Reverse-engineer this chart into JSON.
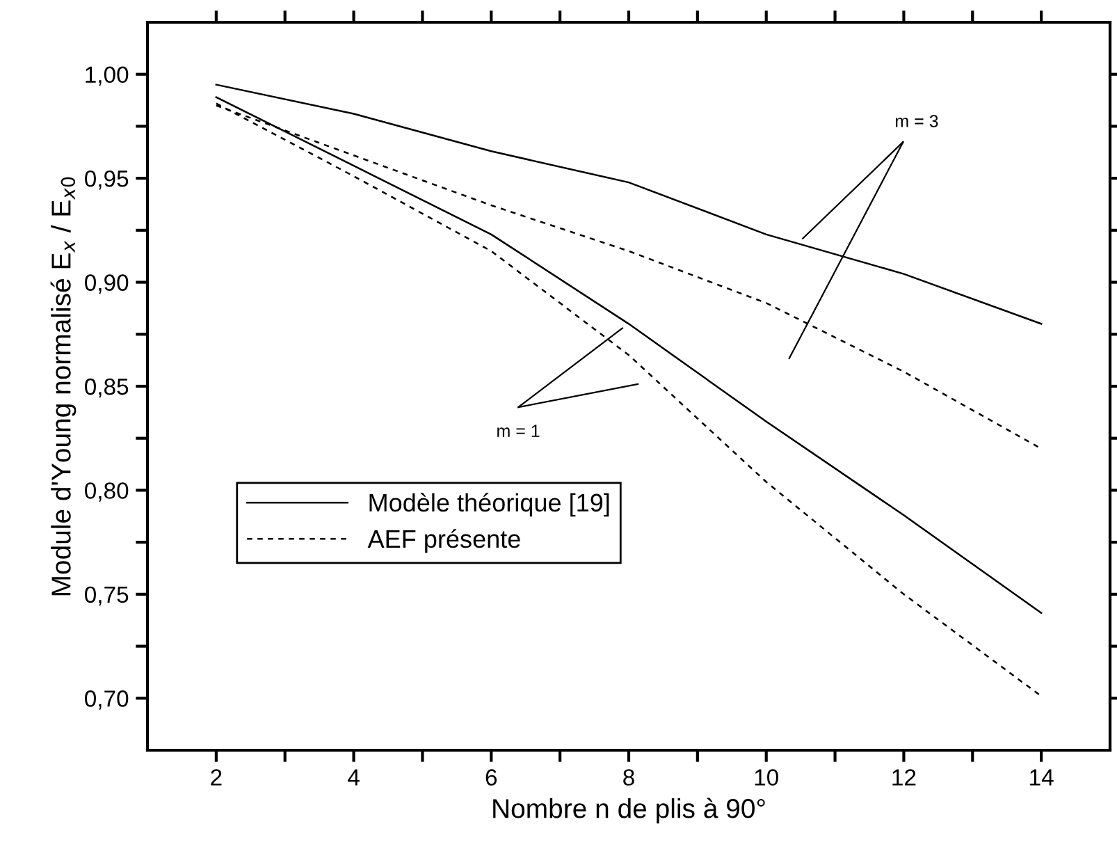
{
  "chart_data": {
    "type": "line",
    "xlabel": "Nombre n de plis à 90°",
    "ylabel": "Module d'Young normalisé E$_{x}$ / E$_{x0}$",
    "x": [
      2,
      4,
      6,
      8,
      10,
      12,
      14
    ],
    "series": [
      {
        "name": "Modèle théorique [19]",
        "color": "#000000",
        "line_style": "solid",
        "values": [
          0.995,
          0.981,
          0.963,
          0.948,
          0.923,
          0.904,
          0.88
        ]
      },
      {
        "color": "#000000",
        "line_style": "solid",
        "values": [
          0.989,
          0.956,
          0.923,
          0.88,
          0.833,
          0.788,
          0.741
        ]
      },
      {
        "name": "AEF présente",
        "color": "#000000",
        "line_style": "dashed",
        "values": [
          0.985,
          0.961,
          0.937,
          0.915,
          0.89,
          0.857,
          0.82
        ]
      },
      {
        "color": "#000000",
        "line_style": "dashed",
        "values": [
          0.986,
          0.951,
          0.915,
          0.865,
          0.804,
          0.75,
          0.701
        ]
      }
    ],
    "annotations": [
      {
        "text": "m = 3",
        "x": 10.53,
        "y": 0.921
      },
      {
        "text": "m = 1",
        "x": 7.91,
        "y": 0.878
      }
    ],
    "xlim": [
      1,
      15
    ],
    "xticks": [
      2,
      {
        "value": 3,
        "label": null
      },
      4,
      {
        "value": 5,
        "label": null
      },
      6,
      {
        "value": 7,
        "label": null
      },
      8,
      {
        "value": 9,
        "label": null
      },
      10,
      {
        "value": 11,
        "label": null
      },
      12,
      {
        "value": 13,
        "label": null
      },
      14
    ],
    "ylim": [
      0.675,
      1.025
    ],
    "yticks": [
      {
        "value": 0.7,
        "label": "0,70"
      },
      {
        "value": 0.725,
        "label": null
      },
      {
        "value": 0.75,
        "label": "0,75"
      },
      {
        "value": 0.775,
        "label": null
      },
      {
        "value": 0.8,
        "label": "0,80"
      },
      {
        "value": 0.825,
        "label": null
      },
      {
        "value": 0.85,
        "label": "0,85"
      },
      {
        "value": 0.875,
        "label": null
      },
      {
        "value": 0.9,
        "label": "0,90"
      },
      {
        "value": 0.925,
        "label": null
      },
      {
        "value": 0.95,
        "label": "0,95"
      },
      {
        "value": 0.975,
        "label": null
      },
      {
        "value": 1.0,
        "label": "1,00"
      }
    ],
    "grid": false,
    "legend": "bottom left",
    "marker": "none"
  }
}
